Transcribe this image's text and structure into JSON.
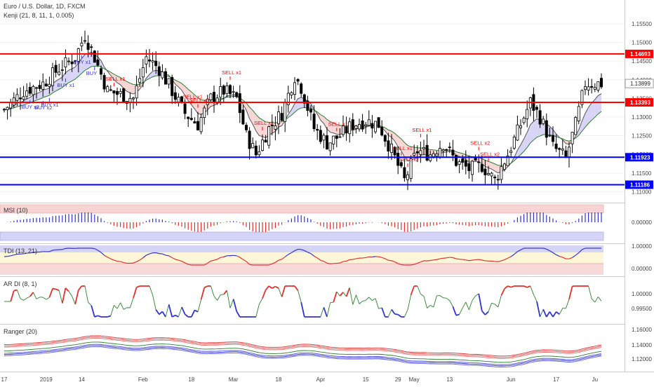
{
  "header": {
    "symbol": "Euro / U.S. Dollar, 1D, FXCM",
    "indicator": "Kenji (21, 8, 11, 1, 0.005)"
  },
  "colors": {
    "bull": "#ffffff",
    "bear": "#000000",
    "red_line": "#ff0000",
    "blue_line": "#0000ff",
    "sell": "#ff0000",
    "buy": "#3333cc",
    "ma_green": "#2e7d32"
  },
  "price_axis": {
    "ticks": [
      "1.15500",
      "1.15000",
      "1.14500",
      "1.14000",
      "1.13500",
      "1.13000",
      "1.12500",
      "1.12000",
      "1.11500",
      "1.11000"
    ],
    "min": 1.108,
    "max": 1.158
  },
  "levels": [
    {
      "label": "1.14693",
      "value": 1.14693,
      "color": "#ff0000"
    },
    {
      "label": "1.13393",
      "value": 1.13393,
      "color": "#ff0000"
    },
    {
      "label": "1.11923",
      "value": 1.11923,
      "color": "#0000ff"
    },
    {
      "label": "1.11186",
      "value": 1.11186,
      "color": "#0000ff"
    }
  ],
  "last_price": {
    "label": "1.13899",
    "value": 1.13899
  },
  "signals": [
    {
      "label": "BUY x2",
      "bar": 8,
      "side": "buy"
    },
    {
      "label": "BUY x1",
      "bar": 14,
      "side": "buy"
    },
    {
      "label": "BUY x2",
      "bar": 12,
      "side": "buy"
    },
    {
      "label": "BUY x1",
      "bar": 19,
      "side": "buy"
    },
    {
      "label": "BUY x1",
      "bar": 24,
      "side": "buy"
    },
    {
      "label": "BUY",
      "bar": 28,
      "side": "buy"
    },
    {
      "label": "SELL x1",
      "bar": 34,
      "side": "sell"
    },
    {
      "label": "SELL x1",
      "bar": 58,
      "side": "sell"
    },
    {
      "label": "SELL x2",
      "bar": 60,
      "side": "sell"
    },
    {
      "label": "SELL x1",
      "bar": 70,
      "side": "sell"
    },
    {
      "label": "SELL x2",
      "bar": 80,
      "side": "sell"
    },
    {
      "label": "SELL x1",
      "bar": 103,
      "side": "sell"
    },
    {
      "label": "SELL x1",
      "bar": 123,
      "side": "sell"
    },
    {
      "label": "SELL x2",
      "bar": 125,
      "side": "sell"
    },
    {
      "label": "SELL x1",
      "bar": 129,
      "side": "sell"
    },
    {
      "label": "SELL x2",
      "bar": 147,
      "side": "sell"
    },
    {
      "label": "SELL x2",
      "bar": 150,
      "side": "sell"
    }
  ],
  "panels": {
    "msi": {
      "title": "MSI (10)",
      "ticks": [
        "0.00000"
      ]
    },
    "tdi": {
      "title": "TDI (13, 21)",
      "ticks": [
        "1.00000",
        "0.00000"
      ]
    },
    "ardi": {
      "title": "AR DI (8, 1)",
      "ticks": [
        "1.00000",
        "0.99500"
      ]
    },
    "ranger": {
      "title": "Ranger (20)",
      "ticks": [
        "1.16000",
        "1.14000",
        "1.12000"
      ]
    }
  },
  "time_axis": {
    "labels": [
      {
        "label": "17",
        "bar": 0
      },
      {
        "label": "2019",
        "bar": 13
      },
      {
        "label": "14",
        "bar": 24
      },
      {
        "label": "Feb",
        "bar": 43
      },
      {
        "label": "18",
        "bar": 58
      },
      {
        "label": "Mar",
        "bar": 71
      },
      {
        "label": "18",
        "bar": 85
      },
      {
        "label": "Apr",
        "bar": 98
      },
      {
        "label": "15",
        "bar": 112
      },
      {
        "label": "29",
        "bar": 122
      },
      {
        "label": "May",
        "bar": 127
      },
      {
        "label": "13",
        "bar": 138
      },
      {
        "label": "Jun",
        "bar": 157
      },
      {
        "label": "17",
        "bar": 171
      },
      {
        "label": "Ju",
        "bar": 183
      }
    ]
  }
}
